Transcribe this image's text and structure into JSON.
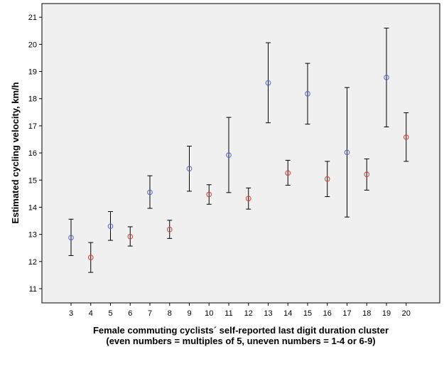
{
  "chart_data": {
    "type": "scatter",
    "subtype": "error-bar",
    "ylabel": "Estimated cycling velocity, km/h",
    "xlabel_lines": [
      "Female commuting cyclists´ self-reported last digit duration cluster",
      "(even numbers = multiples of 5, uneven numbers = 1-4 or 6-9)"
    ],
    "categories": [
      "3",
      "4",
      "5",
      "6",
      "7",
      "8",
      "9",
      "10",
      "11",
      "12",
      "13",
      "14",
      "15",
      "16",
      "17",
      "18",
      "19",
      "20"
    ],
    "yticks": [
      11,
      12,
      13,
      14,
      15,
      16,
      17,
      18,
      19,
      20,
      21
    ],
    "ylim": [
      10.4,
      21.4
    ],
    "grid": false,
    "plot_background": "#f0f0f0",
    "colors": {
      "uneven": "#5b6fd6",
      "even": "#d84a3a",
      "error_bar": "#000000"
    },
    "points": [
      {
        "x": "3",
        "mean": 12.88,
        "low": 12.22,
        "high": 13.56,
        "group": "uneven"
      },
      {
        "x": "4",
        "mean": 12.15,
        "low": 11.6,
        "high": 12.7,
        "group": "even"
      },
      {
        "x": "5",
        "mean": 13.3,
        "low": 12.78,
        "high": 13.84,
        "group": "uneven"
      },
      {
        "x": "6",
        "mean": 12.92,
        "low": 12.57,
        "high": 13.28,
        "group": "even"
      },
      {
        "x": "7",
        "mean": 14.55,
        "low": 13.96,
        "high": 15.16,
        "group": "uneven"
      },
      {
        "x": "8",
        "mean": 13.18,
        "low": 12.85,
        "high": 13.52,
        "group": "even"
      },
      {
        "x": "9",
        "mean": 15.42,
        "low": 14.59,
        "high": 16.25,
        "group": "uneven"
      },
      {
        "x": "10",
        "mean": 14.47,
        "low": 14.11,
        "high": 14.83,
        "group": "even"
      },
      {
        "x": "11",
        "mean": 15.92,
        "low": 14.54,
        "high": 17.31,
        "group": "uneven"
      },
      {
        "x": "12",
        "mean": 14.32,
        "low": 13.93,
        "high": 14.71,
        "group": "even"
      },
      {
        "x": "13",
        "mean": 18.58,
        "low": 17.11,
        "high": 20.06,
        "group": "uneven"
      },
      {
        "x": "14",
        "mean": 15.26,
        "low": 14.81,
        "high": 15.73,
        "group": "even"
      },
      {
        "x": "15",
        "mean": 18.18,
        "low": 17.06,
        "high": 19.3,
        "group": "uneven"
      },
      {
        "x": "16",
        "mean": 15.04,
        "low": 14.39,
        "high": 15.69,
        "group": "even"
      },
      {
        "x": "17",
        "mean": 16.02,
        "low": 13.64,
        "high": 18.41,
        "group": "uneven"
      },
      {
        "x": "18",
        "mean": 15.21,
        "low": 14.63,
        "high": 15.78,
        "group": "even"
      },
      {
        "x": "19",
        "mean": 18.78,
        "low": 16.96,
        "high": 20.6,
        "group": "uneven"
      },
      {
        "x": "20",
        "mean": 16.58,
        "low": 15.69,
        "high": 17.48,
        "group": "even"
      }
    ]
  }
}
